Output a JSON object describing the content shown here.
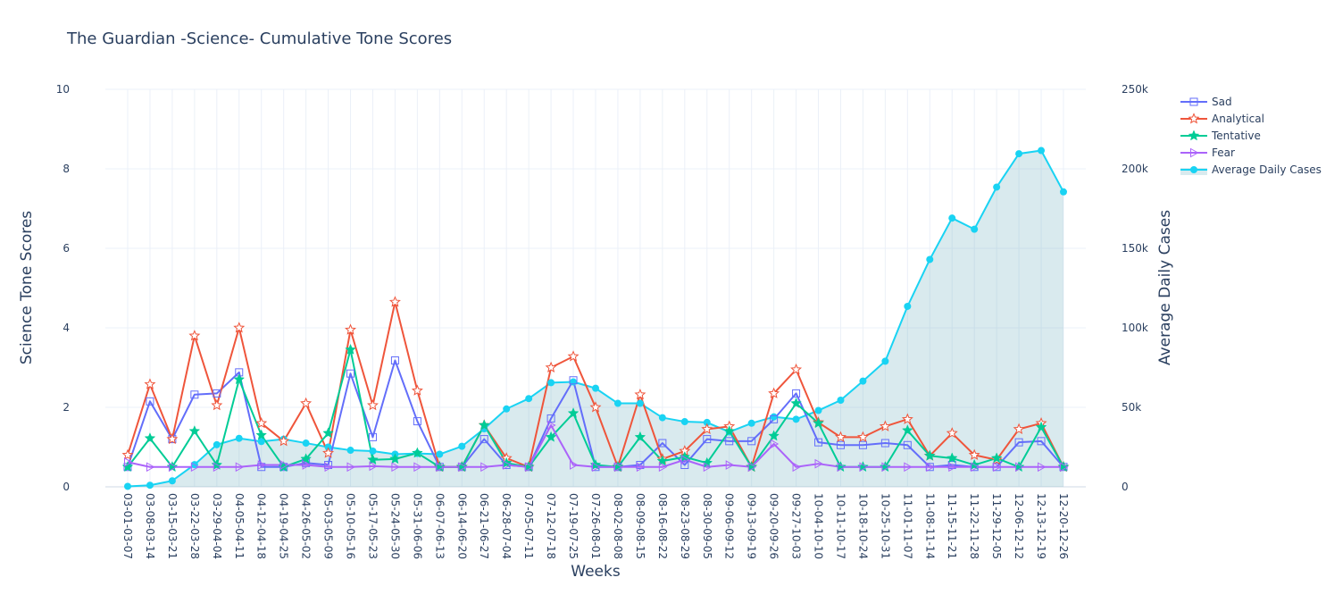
{
  "chart_data": {
    "type": "line",
    "title": "The Guardian -Science- Cumulative Tone Scores",
    "xlabel": "Weeks",
    "ylabel": "Science Tone Scores",
    "y2label": "Average Daily Cases",
    "ylim": [
      0,
      10
    ],
    "y2lim": [
      0,
      250000
    ],
    "yticks": [
      "0",
      "2",
      "4",
      "6",
      "8",
      "10"
    ],
    "y2ticks": [
      "0",
      "50k",
      "100k",
      "150k",
      "200k",
      "250k"
    ],
    "grid": true,
    "legend_position": "top-right",
    "categories": [
      "03-01-03-07",
      "03-08-03-14",
      "03-15-03-21",
      "03-22-03-28",
      "03-29-04-04",
      "04-05-04-11",
      "04-12-04-18",
      "04-19-04-25",
      "04-26-05-02",
      "05-03-05-09",
      "05-10-05-16",
      "05-17-05-23",
      "05-24-05-30",
      "05-31-06-06",
      "06-07-06-13",
      "06-14-06-20",
      "06-21-06-27",
      "06-28-07-04",
      "07-05-07-11",
      "07-12-07-18",
      "07-19-07-25",
      "07-26-08-01",
      "08-02-08-08",
      "08-09-08-15",
      "08-16-08-22",
      "08-23-08-29",
      "08-30-09-05",
      "09-06-09-12",
      "09-13-09-19",
      "09-20-09-26",
      "09-27-10-03",
      "10-04-10-10",
      "10-11-10-17",
      "10-18-10-24",
      "10-25-10-31",
      "11-01-11-07",
      "11-08-11-14",
      "11-15-11-21",
      "11-22-11-28",
      "11-29-12-05",
      "12-06-12-12",
      "12-13-12-19",
      "12-20-12-26"
    ],
    "series": [
      {
        "name": "Sad",
        "axis": "y",
        "color": "#636efa",
        "marker": "square-open",
        "values": [
          0.5,
          2.15,
          1.2,
          2.32,
          2.35,
          2.88,
          0.5,
          0.5,
          0.6,
          0.55,
          2.85,
          1.25,
          3.18,
          1.65,
          0.5,
          0.5,
          1.2,
          0.55,
          0.5,
          1.72,
          2.68,
          0.5,
          0.5,
          0.55,
          1.1,
          0.55,
          1.2,
          1.15,
          1.15,
          1.7,
          2.35,
          1.12,
          1.05,
          1.05,
          1.1,
          1.05,
          0.5,
          0.55,
          0.5,
          0.5,
          1.12,
          1.15,
          0.5
        ]
      },
      {
        "name": "Analytical",
        "axis": "y",
        "color": "#ef553b",
        "marker": "star-open",
        "values": [
          0.8,
          2.58,
          1.2,
          3.8,
          2.05,
          4.0,
          1.6,
          1.15,
          2.1,
          0.85,
          3.95,
          2.05,
          4.65,
          2.42,
          0.5,
          0.5,
          1.55,
          0.72,
          0.5,
          3.0,
          3.28,
          2.0,
          0.5,
          2.32,
          0.7,
          0.9,
          1.45,
          1.52,
          0.5,
          2.35,
          2.95,
          1.62,
          1.25,
          1.25,
          1.52,
          1.7,
          0.78,
          1.35,
          0.8,
          0.68,
          1.45,
          1.6,
          0.5
        ]
      },
      {
        "name": "Tentative",
        "axis": "y",
        "color": "#00cc96",
        "marker": "star",
        "values": [
          0.5,
          1.22,
          0.5,
          1.4,
          0.55,
          2.7,
          1.3,
          0.5,
          0.7,
          1.35,
          3.45,
          0.68,
          0.7,
          0.85,
          0.5,
          0.5,
          1.55,
          0.6,
          0.5,
          1.25,
          1.85,
          0.55,
          0.5,
          1.25,
          0.65,
          0.75,
          0.6,
          1.4,
          0.5,
          1.28,
          2.1,
          1.6,
          0.5,
          0.5,
          0.5,
          1.42,
          0.78,
          0.72,
          0.55,
          0.72,
          0.5,
          1.5,
          0.5
        ]
      },
      {
        "name": "Fear",
        "axis": "y",
        "color": "#ab63fa",
        "marker": "triangle-right-open",
        "values": [
          0.62,
          0.5,
          0.5,
          0.5,
          0.5,
          0.5,
          0.55,
          0.55,
          0.55,
          0.5,
          0.5,
          0.52,
          0.5,
          0.5,
          0.5,
          0.5,
          0.5,
          0.55,
          0.5,
          1.55,
          0.55,
          0.5,
          0.5,
          0.5,
          0.5,
          0.68,
          0.5,
          0.55,
          0.5,
          1.08,
          0.5,
          0.58,
          0.5,
          0.5,
          0.5,
          0.5,
          0.5,
          0.5,
          0.5,
          0.5,
          0.5,
          0.5,
          0.5
        ]
      },
      {
        "name": "Average Daily Cases",
        "axis": "y2",
        "color": "#19d3f3",
        "fillcolor": "rgba(120,180,195,0.28)",
        "marker": "circle",
        "fill": true,
        "values": [
          300,
          1000,
          3800,
          14000,
          26500,
          30500,
          28500,
          30000,
          27500,
          25000,
          23000,
          22500,
          20500,
          21000,
          20500,
          25500,
          36500,
          49000,
          55500,
          65500,
          66000,
          62000,
          52500,
          52500,
          43500,
          41000,
          40500,
          34500,
          40000,
          44000,
          42500,
          48000,
          54500,
          66500,
          79000,
          113500,
          143000,
          169000,
          162000,
          188500,
          209500,
          211500,
          185500
        ]
      }
    ]
  }
}
